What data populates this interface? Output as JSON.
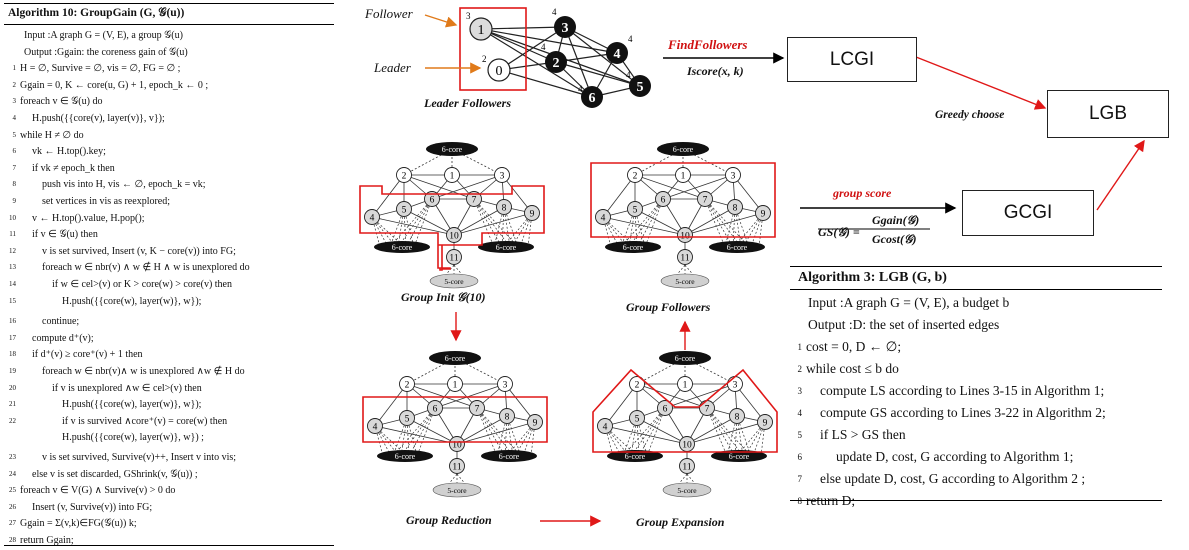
{
  "alg10": {
    "title": "Algorithm 10: GroupGain (G, 𝒢(u))",
    "lines": [
      {
        "n": "",
        "t": "Input   :A graph G = (V, E), a group 𝒢(u)"
      },
      {
        "n": "",
        "t": "Output :Ggain: the coreness gain of 𝒢(u)"
      },
      {
        "n": "1",
        "t": "H = ∅, Survive = ∅, vis = ∅, FG = ∅ ;"
      },
      {
        "n": "2",
        "t": "Ggain = 0, K ← core(u, G) + 1, epoch_k ← 0 ;"
      },
      {
        "n": "3",
        "t": "foreach v ∈ 𝒢(u) do"
      },
      {
        "n": "4",
        "t": "H.push({{core(v), layer(v)}, v});"
      },
      {
        "n": "5",
        "t": "while H ≠ ∅ do"
      },
      {
        "n": "6",
        "t": "vk ← H.top().key;"
      },
      {
        "n": "7",
        "t": "if vk ≠ epoch_k then"
      },
      {
        "n": "8",
        "t": "push vis into H, vis ← ∅, epoch_k = vk;"
      },
      {
        "n": "9",
        "t": "set vertices in vis as reexplored;"
      },
      {
        "n": "10",
        "t": "v ← H.top().value, H.pop();"
      },
      {
        "n": "11",
        "t": "if v ∈ 𝒢(u) then"
      },
      {
        "n": "12",
        "t": "v is set survived, Insert (v, K − core(v)) into FG;"
      },
      {
        "n": "13",
        "t": "foreach w ∈ nbr(v) ∧ w ∉ H ∧ w is unexplored do"
      },
      {
        "n": "14",
        "t": "if w ∈ cel>(v) or K > core(w) > core(v) then"
      },
      {
        "n": "15",
        "t": "H.push({{core(w), layer(w)}, w});"
      },
      {
        "n": "16",
        "t": "continue;"
      },
      {
        "n": "17",
        "t": "compute d⁺(v);"
      },
      {
        "n": "18",
        "t": "if d⁺(v) ≥ core⁺(v) + 1 then"
      },
      {
        "n": "19",
        "t": "foreach w ∈ nbr(v)∧ w is unexplored ∧w ∉ H do"
      },
      {
        "n": "20",
        "t": "if v is unexplored ∧w ∈ cel>(v) then"
      },
      {
        "n": "21",
        "t": "H.push({{core(w), layer(w)}, w});"
      },
      {
        "n": "22",
        "t": "if v is survived ∧core⁺(v) = core(w) then"
      },
      {
        "n": "",
        "t": "H.push({{core(w), layer(w)}, w}) ;"
      },
      {
        "n": "23",
        "t": "v is set survived, Survive(v)++, Insert v into vis;"
      },
      {
        "n": "24",
        "t": "else  v is set discarded, GShrink(v, 𝒢(u)) ;"
      },
      {
        "n": "25",
        "t": "foreach v ∈ V(G) ∧ Survive(v) > 0 do"
      },
      {
        "n": "26",
        "t": "Insert (v, Survive(v)) into FG;"
      },
      {
        "n": "27",
        "t": "Ggain = Σ(v,k)∈FG(𝒢(u)) k;"
      },
      {
        "n": "28",
        "t": "return Ggain;"
      }
    ]
  },
  "alg3": {
    "title": "Algorithm 3: LGB (G, b)",
    "lines": [
      {
        "n": "",
        "t": "Input   :A graph G = (V, E), a budget b"
      },
      {
        "n": "",
        "t": "Output :D: the set of inserted edges"
      },
      {
        "n": "1",
        "t": "cost = 0, D ← ∅;"
      },
      {
        "n": "2",
        "t": "while cost ≤ b do"
      },
      {
        "n": "3",
        "t": "compute LS according to Lines 3-15 in Algorithm 1;"
      },
      {
        "n": "4",
        "t": "compute GS according to Lines 3-22 in Algorithm 2;"
      },
      {
        "n": "5",
        "t": "if LS > GS then"
      },
      {
        "n": "6",
        "t": "update D, cost, G according to Algorithm 1;"
      },
      {
        "n": "7",
        "t": "else  update D, cost, G according to Algorithm 2 ;"
      },
      {
        "n": "8",
        "t": "return D;"
      }
    ]
  },
  "top": {
    "follower": "Follower",
    "leader": "Leader",
    "caption": "Leader Followers",
    "node_labels": [
      "1",
      "0",
      "2",
      "3",
      "4",
      "5",
      "6"
    ],
    "degree_labels": [
      "3",
      "2",
      "4",
      "4",
      "4",
      "4",
      "4"
    ],
    "find_followers": "FindFollowers",
    "iscore": "Iscore(x, k)",
    "lcgi": "LCGI",
    "greedy": "Greedy choose",
    "lgb": "LGB",
    "group_score": "group score",
    "gs_lhs": "GS(𝒢) =",
    "gs_num": "Ggain(𝒢)",
    "gs_den": "Gcost(𝒢)",
    "gcgi": "GCGI"
  },
  "panels": {
    "core_top": "6-core",
    "core_left": "6-core",
    "core_right": "6-core",
    "core_bottom": "5-core",
    "node_labels": [
      "2",
      "1",
      "3",
      "4",
      "5",
      "6",
      "7",
      "8",
      "9",
      "10",
      "11"
    ],
    "captions": {
      "init": "Group Init 𝒢(10)",
      "followers": "Group Followers",
      "reduction": "Group Reduction",
      "expansion": "Group Expansion"
    }
  },
  "colors": {
    "accent": "#e01818",
    "node_dark": "#111111",
    "node_grey": "#d9d9d9"
  }
}
